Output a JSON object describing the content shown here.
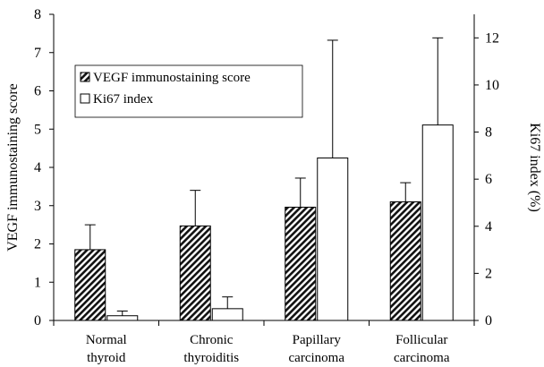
{
  "chart_data": {
    "type": "bar",
    "categories": [
      [
        "Normal",
        "thyroid"
      ],
      [
        "Chronic",
        "thyroiditis"
      ],
      [
        "Papillary",
        "carcinoma"
      ],
      [
        "Follicular",
        "carcinoma"
      ]
    ],
    "ylabel_left": "VEGF immunostaining score",
    "ylabel_right": "Ki67 index (%)",
    "ylim_left": [
      0,
      8
    ],
    "yticks_left": [
      "0",
      "1",
      "2",
      "3",
      "4",
      "5",
      "6",
      "7",
      "8"
    ],
    "ylim_right": [
      0,
      13
    ],
    "yticks_right": [
      "0",
      "2",
      "4",
      "6",
      "8",
      "10",
      "12"
    ],
    "legend_placement": "upper-left inside",
    "grid": false,
    "series": [
      {
        "name": "VEGF immunostaining score",
        "axis": "left",
        "pattern": "diagonal-hatch",
        "values": [
          1.85,
          2.47,
          2.96,
          3.1
        ],
        "error_upper": [
          2.5,
          3.4,
          3.72,
          3.6
        ]
      },
      {
        "name": "Ki67 index",
        "axis": "right",
        "pattern": "white",
        "values": [
          0.2,
          0.5,
          6.9,
          8.3
        ],
        "error_upper": [
          0.4,
          1.0,
          11.9,
          12.0
        ]
      }
    ]
  }
}
